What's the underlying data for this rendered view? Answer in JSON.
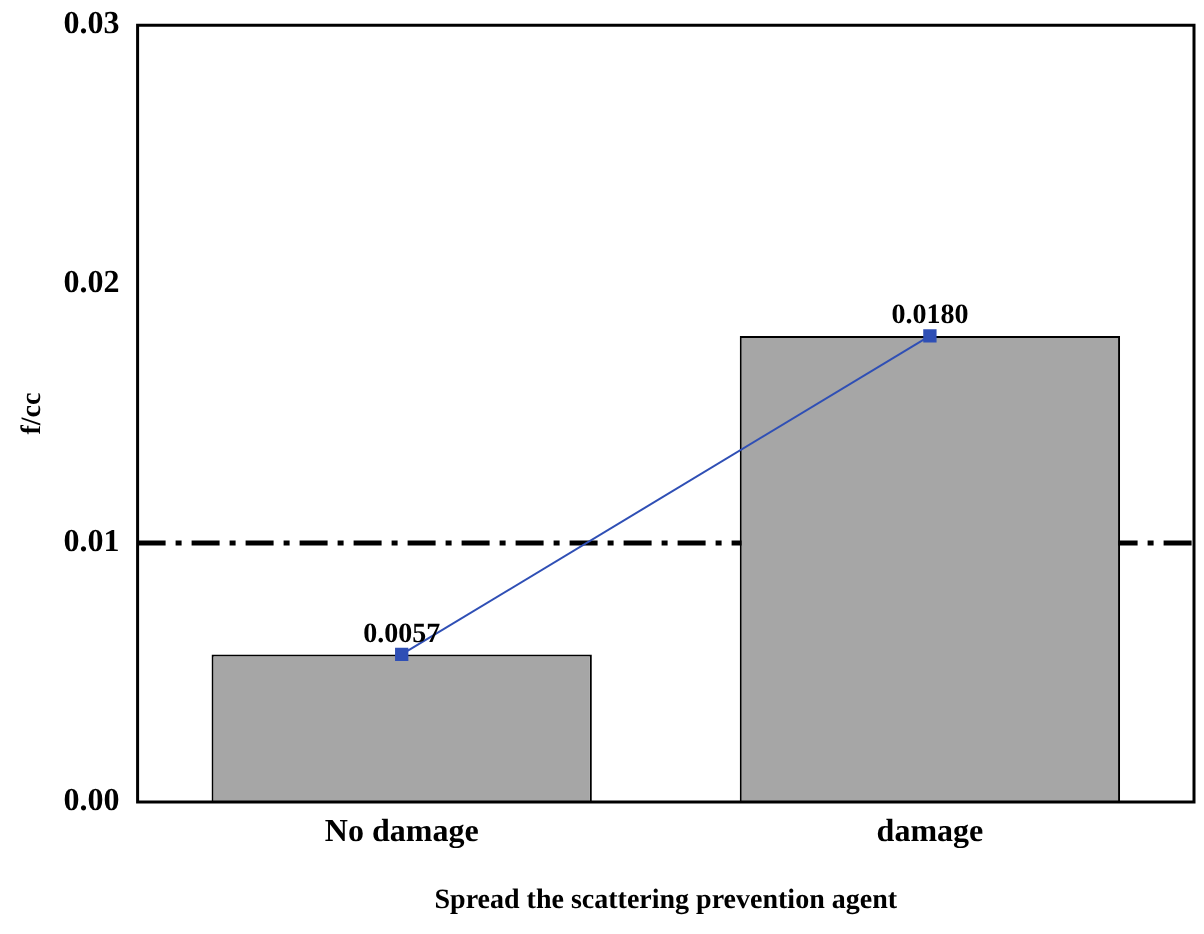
{
  "chart_data": {
    "type": "bar",
    "xlabel": "Spread the scattering prevention agent",
    "ylabel": "f/cc",
    "categories": [
      "No damage",
      "damage"
    ],
    "series": [
      {
        "color": "#a6a6a6",
        "values": [
          0.0057,
          0.018
        ]
      },
      {
        "type": "line",
        "color": "#2f4fb5",
        "values": [
          0.0057,
          0.018
        ],
        "marker": "square",
        "value_labels": [
          "0.0057",
          "0.0180"
        ]
      }
    ],
    "ylim": [
      0,
      0.03
    ],
    "yticks": [
      {
        "value": 0,
        "label": "0.00"
      },
      {
        "value": 0.01,
        "label": "0.01"
      },
      {
        "value": 0.02,
        "label": "0.02"
      },
      {
        "value": 0.03,
        "label": "0.03"
      }
    ],
    "ref_lines": [
      {
        "axis": "y",
        "value": 0.01,
        "color": "#000000",
        "line_style": "dashdot"
      }
    ],
    "grid": false,
    "legend": false
  }
}
